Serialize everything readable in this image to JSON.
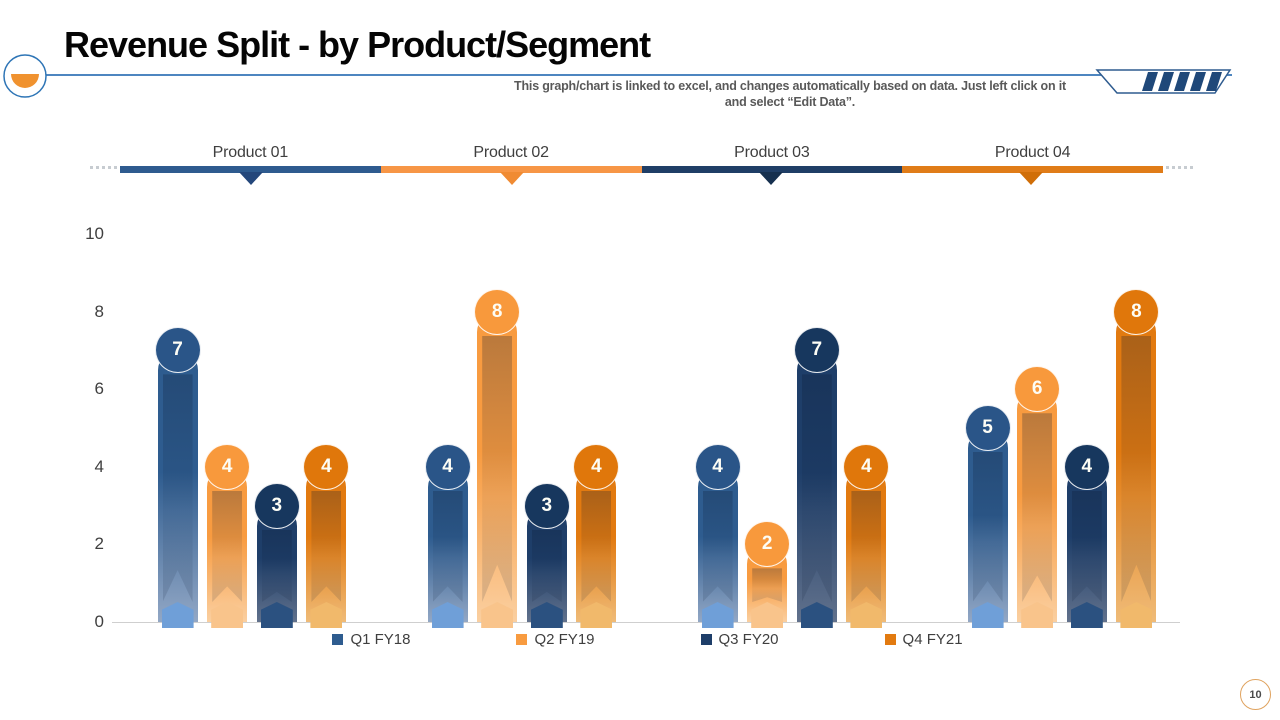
{
  "slide": {
    "title": "Revenue Split - by Product/Segment",
    "subtitle_line1": "This graph/chart is linked to excel, and changes automatically based on data. Just left click on it",
    "subtitle_line2": "and select “Edit Data”.",
    "page_number": "10"
  },
  "decor": {
    "accent_line_color": "#4E86C0",
    "hatch_outline_color": "#2E5B8F",
    "hatch_stripe_color": "#1F4879",
    "logo_ring_color": "#2E75B6",
    "logo_bowl_color": "#F0922F",
    "page_circle_border": "#E0A35F"
  },
  "product_band": {
    "items": [
      {
        "label": "Product 01",
        "color": "#2E5B8F",
        "arrow_color": "#24477B"
      },
      {
        "label": "Product 02",
        "color": "#F79646",
        "arrow_color": "#F08B33"
      },
      {
        "label": "Product 03",
        "color": "#1F3E66",
        "arrow_color": "#16304F"
      },
      {
        "label": "Product 04",
        "color": "#E07C18",
        "arrow_color": "#D06E08"
      }
    ]
  },
  "chart_data": {
    "type": "bar",
    "title": "Revenue Split - by Product/Segment",
    "categories": [
      "Product 01",
      "Product 02",
      "Product 03",
      "Product 04"
    ],
    "series": [
      {
        "name": "Q1 FY18",
        "values": [
          7,
          4,
          4,
          5
        ],
        "color": "#2E5C8F",
        "color_light": "#92A7C5",
        "pentagon_color": "#6F9FD8",
        "circle_color": "#2A5588"
      },
      {
        "name": "Q2 FY19",
        "values": [
          4,
          8,
          2,
          6
        ],
        "color": "#F89B40",
        "color_light": "#FACFA0",
        "pentagon_color": "#F9C48B",
        "circle_color": "#F8993C"
      },
      {
        "name": "Q3 FY20",
        "values": [
          3,
          3,
          7,
          4
        ],
        "color": "#1E3E69",
        "color_light": "#61718C",
        "pentagon_color": "#2B5180",
        "circle_color": "#17375E"
      },
      {
        "name": "Q4 FY21",
        "values": [
          4,
          4,
          4,
          8
        ],
        "color": "#E27A10",
        "color_light": "#EFBB78",
        "pentagon_color": "#F1B96B",
        "circle_color": "#E0770B"
      }
    ],
    "ylim": [
      0,
      10
    ],
    "yticks": [
      0,
      2,
      4,
      6,
      8,
      10
    ],
    "grid": false,
    "legend_position": "bottom"
  }
}
